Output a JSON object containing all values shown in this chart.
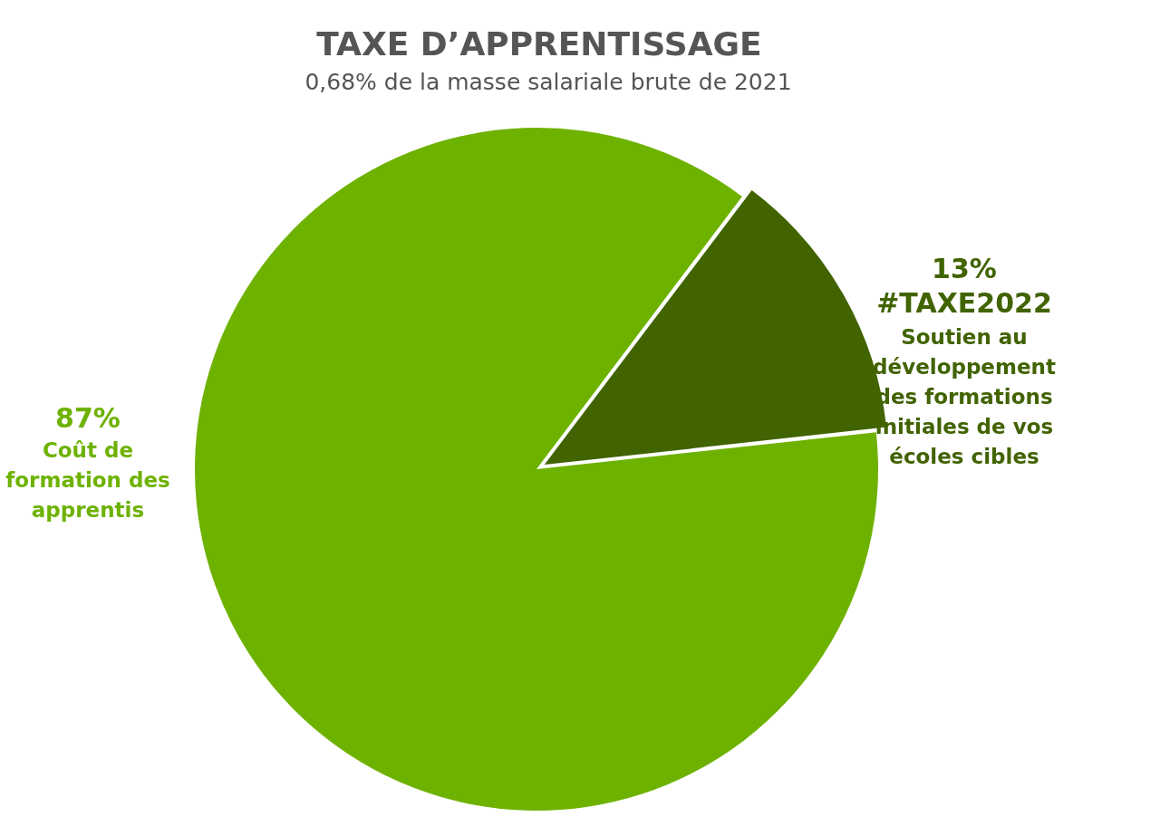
{
  "chart_data": {
    "type": "pie",
    "title": "TAXE D’APPRENTISSAGE",
    "subtitle": "0,68% de la masse salariale brute de 2021",
    "categories": [
      "Soutien au développement des formations initiales de vos écoles cibles",
      "Coût de formation des apprentis"
    ],
    "values": [
      13,
      87
    ],
    "colors": [
      "#416300",
      "#6eb200"
    ],
    "value_labels": [
      "13%",
      "87%"
    ],
    "annotations": [
      "#TAXE2022"
    ],
    "legend": false
  }
}
